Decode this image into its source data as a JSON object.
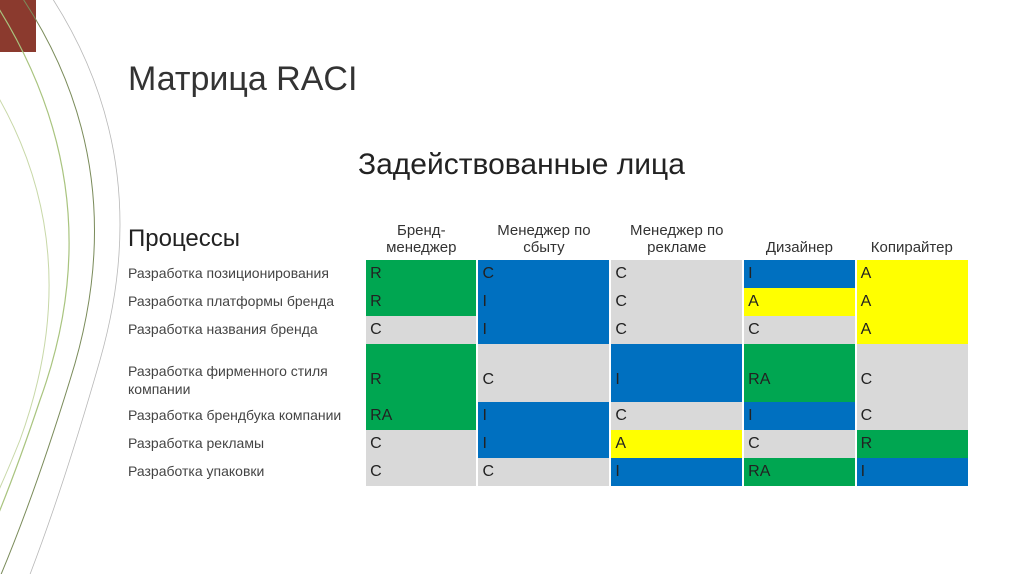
{
  "title": "Матрица RACI",
  "subtitle": "Задействованные лица",
  "processes_label": "Процессы",
  "colors": {
    "accent_bar": "#8b3a2e",
    "green": "#00a651",
    "blue": "#0070c0",
    "yellow": "#ffff00",
    "grey": "#d9d9d9",
    "white": "#ffffff",
    "text_dark": "#222222"
  },
  "columns": [
    "Бренд-менеджер",
    "Менеджер по сбыту",
    "Менеджер по рекламе",
    "Дизайнер",
    "Копирайтер"
  ],
  "col_widths": [
    "232px",
    "110px",
    "130px",
    "130px",
    "110px",
    "110px"
  ],
  "rows": [
    {
      "label": "Разработка позиционирования",
      "cells": [
        {
          "v": "R",
          "bg": "#00a651"
        },
        {
          "v": "C",
          "bg": "#0070c0"
        },
        {
          "v": "C",
          "bg": "#d9d9d9"
        },
        {
          "v": "I",
          "bg": "#0070c0"
        },
        {
          "v": "A",
          "bg": "#ffff00"
        }
      ]
    },
    {
      "label": "Разработка платформы бренда",
      "cells": [
        {
          "v": "R",
          "bg": "#00a651"
        },
        {
          "v": "I",
          "bg": "#0070c0"
        },
        {
          "v": "C",
          "bg": "#d9d9d9"
        },
        {
          "v": "A",
          "bg": "#ffff00"
        },
        {
          "v": "A",
          "bg": "#ffff00"
        }
      ]
    },
    {
      "label": "Разработка названия бренда",
      "cells": [
        {
          "v": "C",
          "bg": "#d9d9d9"
        },
        {
          "v": "I",
          "bg": "#0070c0"
        },
        {
          "v": "C",
          "bg": "#d9d9d9"
        },
        {
          "v": "C",
          "bg": "#d9d9d9"
        },
        {
          "v": "A",
          "bg": "#ffff00"
        }
      ]
    },
    {
      "spacer": true,
      "cells": [
        {
          "v": "",
          "bg": "#00a651"
        },
        {
          "v": "",
          "bg": "#d9d9d9"
        },
        {
          "v": "",
          "bg": "#0070c0"
        },
        {
          "v": "",
          "bg": "#00a651"
        },
        {
          "v": "",
          "bg": "#d9d9d9"
        }
      ]
    },
    {
      "label": "Разработка фирменного стиля компании",
      "cells": [
        {
          "v": "R",
          "bg": "#00a651"
        },
        {
          "v": "C",
          "bg": "#d9d9d9"
        },
        {
          "v": "I",
          "bg": "#0070c0"
        },
        {
          "v": "RA",
          "bg": "#00a651"
        },
        {
          "v": "C",
          "bg": "#d9d9d9"
        }
      ]
    },
    {
      "label": "Разработка брендбука компании",
      "cells": [
        {
          "v": "RA",
          "bg": "#00a651"
        },
        {
          "v": "I",
          "bg": "#0070c0"
        },
        {
          "v": "C",
          "bg": "#d9d9d9"
        },
        {
          "v": "I",
          "bg": "#0070c0"
        },
        {
          "v": "C",
          "bg": "#d9d9d9"
        }
      ]
    },
    {
      "label": "Разработка рекламы",
      "cells": [
        {
          "v": "C",
          "bg": "#d9d9d9"
        },
        {
          "v": "I",
          "bg": "#0070c0"
        },
        {
          "v": "A",
          "bg": "#ffff00"
        },
        {
          "v": "C",
          "bg": "#d9d9d9"
        },
        {
          "v": "R",
          "bg": "#00a651"
        }
      ]
    },
    {
      "label": "Разработка упаковки",
      "cells": [
        {
          "v": "C",
          "bg": "#d9d9d9"
        },
        {
          "v": "C",
          "bg": "#d9d9d9"
        },
        {
          "v": "I",
          "bg": "#0070c0"
        },
        {
          "v": "RA",
          "bg": "#00a651"
        },
        {
          "v": "I",
          "bg": "#0070c0"
        }
      ]
    }
  ]
}
